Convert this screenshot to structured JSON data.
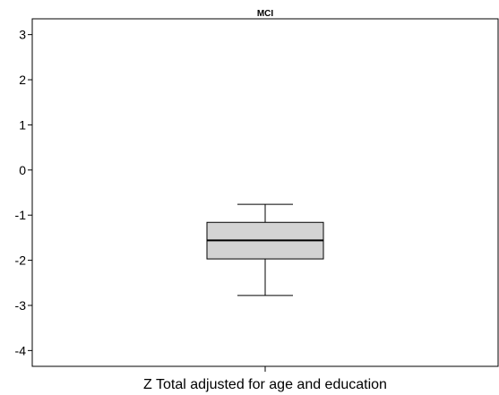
{
  "chart_data": {
    "type": "boxplot",
    "title": "MCI",
    "xlabel": "Z Total adjusted for age and education",
    "ylabel": "",
    "ylim": [
      -4.35,
      3.35
    ],
    "yticks": [
      3,
      2,
      1,
      0,
      -1,
      -2,
      -3,
      -4
    ],
    "ytick_labels": [
      "3",
      "2",
      "1",
      "0",
      "-1",
      "-2",
      "-3",
      "-4"
    ],
    "grid": false,
    "box": {
      "whisker_low": -2.78,
      "q1": -1.97,
      "median": -1.56,
      "q3": -1.16,
      "whisker_high": -0.76
    },
    "colors": {
      "box_fill": "#d3d3d3",
      "stroke": "#000000"
    }
  }
}
